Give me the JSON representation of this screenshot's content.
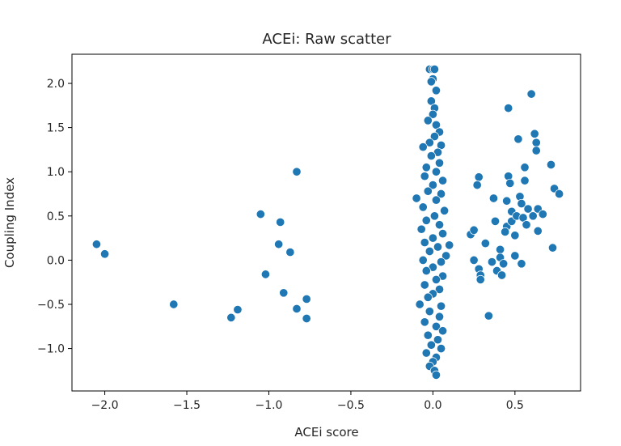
{
  "chart_data": {
    "type": "scatter",
    "title": "ACEi: Raw scatter",
    "xlabel": "ACEi score",
    "ylabel": "Coupling Index",
    "xlim": [
      -2.2,
      0.9
    ],
    "ylim": [
      -1.48,
      2.33
    ],
    "x_ticks": [
      -2.0,
      -1.5,
      -1.0,
      -0.5,
      0.0,
      0.5
    ],
    "x_tick_labels": [
      "−2.0",
      "−1.5",
      "−1.0",
      "−0.5",
      "0.0",
      "0.5"
    ],
    "y_ticks": [
      -1.0,
      -0.5,
      0.0,
      0.5,
      1.0,
      1.5,
      2.0
    ],
    "y_tick_labels": [
      "−1.0",
      "−0.5",
      "0.0",
      "0.5",
      "1.0",
      "1.5",
      "2.0"
    ],
    "grid": false,
    "marker_color": "#1f77b4",
    "points": [
      [
        -2.05,
        0.18
      ],
      [
        -2.0,
        0.07
      ],
      [
        -1.58,
        -0.5
      ],
      [
        -1.23,
        -0.65
      ],
      [
        -1.19,
        -0.56
      ],
      [
        -1.05,
        0.52
      ],
      [
        -1.02,
        -0.16
      ],
      [
        -0.93,
        0.43
      ],
      [
        -0.94,
        0.18
      ],
      [
        -0.91,
        -0.37
      ],
      [
        -0.87,
        0.09
      ],
      [
        -0.83,
        1.0
      ],
      [
        -0.83,
        -0.55
      ],
      [
        -0.77,
        -0.44
      ],
      [
        -0.77,
        -0.66
      ],
      [
        -0.02,
        2.16
      ],
      [
        0.0,
        2.16
      ],
      [
        0.01,
        2.16
      ],
      [
        0.0,
        2.05
      ],
      [
        -0.01,
        2.02
      ],
      [
        0.02,
        1.92
      ],
      [
        -0.01,
        1.8
      ],
      [
        0.01,
        1.72
      ],
      [
        0.0,
        1.65
      ],
      [
        -0.03,
        1.58
      ],
      [
        0.02,
        1.53
      ],
      [
        0.04,
        1.45
      ],
      [
        0.01,
        1.4
      ],
      [
        -0.02,
        1.33
      ],
      [
        0.05,
        1.3
      ],
      [
        -0.06,
        1.28
      ],
      [
        0.03,
        1.22
      ],
      [
        -0.01,
        1.18
      ],
      [
        0.04,
        1.1
      ],
      [
        -0.04,
        1.05
      ],
      [
        0.02,
        1.0
      ],
      [
        -0.05,
        0.95
      ],
      [
        0.06,
        0.9
      ],
      [
        0.0,
        0.85
      ],
      [
        -0.03,
        0.78
      ],
      [
        0.05,
        0.75
      ],
      [
        -0.1,
        0.7
      ],
      [
        0.02,
        0.68
      ],
      [
        -0.06,
        0.6
      ],
      [
        0.07,
        0.56
      ],
      [
        0.01,
        0.5
      ],
      [
        -0.04,
        0.45
      ],
      [
        0.04,
        0.4
      ],
      [
        -0.07,
        0.35
      ],
      [
        0.06,
        0.3
      ],
      [
        0.0,
        0.25
      ],
      [
        0.1,
        0.17
      ],
      [
        -0.05,
        0.2
      ],
      [
        0.03,
        0.15
      ],
      [
        -0.02,
        0.1
      ],
      [
        0.08,
        0.05
      ],
      [
        -0.06,
        0.0
      ],
      [
        0.05,
        -0.02
      ],
      [
        0.0,
        -0.08
      ],
      [
        -0.04,
        -0.12
      ],
      [
        0.06,
        -0.18
      ],
      [
        0.02,
        -0.22
      ],
      [
        -0.05,
        -0.28
      ],
      [
        0.04,
        -0.33
      ],
      [
        0.0,
        -0.38
      ],
      [
        -0.03,
        -0.42
      ],
      [
        -0.08,
        -0.5
      ],
      [
        0.05,
        -0.52
      ],
      [
        -0.02,
        -0.58
      ],
      [
        0.04,
        -0.64
      ],
      [
        -0.05,
        -0.7
      ],
      [
        0.02,
        -0.75
      ],
      [
        0.06,
        -0.8
      ],
      [
        -0.03,
        -0.85
      ],
      [
        0.03,
        -0.9
      ],
      [
        -0.01,
        -0.96
      ],
      [
        0.05,
        -1.0
      ],
      [
        -0.04,
        -1.05
      ],
      [
        0.02,
        -1.1
      ],
      [
        0.0,
        -1.15
      ],
      [
        -0.02,
        -1.2
      ],
      [
        0.01,
        -1.25
      ],
      [
        0.02,
        -1.3
      ],
      [
        0.28,
        0.94
      ],
      [
        0.27,
        0.85
      ],
      [
        0.23,
        0.29
      ],
      [
        0.25,
        0.34
      ],
      [
        0.25,
        0.0
      ],
      [
        0.28,
        -0.1
      ],
      [
        0.29,
        -0.17
      ],
      [
        0.29,
        -0.22
      ],
      [
        0.32,
        0.19
      ],
      [
        0.34,
        -0.63
      ],
      [
        0.37,
        0.7
      ],
      [
        0.38,
        0.44
      ],
      [
        0.36,
        -0.02
      ],
      [
        0.39,
        -0.12
      ],
      [
        0.41,
        0.12
      ],
      [
        0.41,
        0.03
      ],
      [
        0.42,
        -0.17
      ],
      [
        0.43,
        -0.04
      ],
      [
        0.45,
        0.67
      ],
      [
        0.45,
        0.38
      ],
      [
        0.44,
        0.32
      ],
      [
        0.46,
        0.95
      ],
      [
        0.46,
        1.72
      ],
      [
        0.47,
        0.87
      ],
      [
        0.48,
        0.55
      ],
      [
        0.48,
        0.44
      ],
      [
        0.5,
        0.28
      ],
      [
        0.5,
        0.05
      ],
      [
        0.51,
        0.5
      ],
      [
        0.52,
        1.37
      ],
      [
        0.53,
        0.72
      ],
      [
        0.54,
        0.64
      ],
      [
        0.54,
        -0.04
      ],
      [
        0.55,
        0.48
      ],
      [
        0.56,
        1.05
      ],
      [
        0.56,
        0.9
      ],
      [
        0.57,
        0.4
      ],
      [
        0.58,
        0.58
      ],
      [
        0.6,
        1.88
      ],
      [
        0.61,
        0.5
      ],
      [
        0.62,
        1.43
      ],
      [
        0.63,
        1.33
      ],
      [
        0.63,
        1.24
      ],
      [
        0.64,
        0.58
      ],
      [
        0.64,
        0.33
      ],
      [
        0.67,
        0.52
      ],
      [
        0.72,
        1.08
      ],
      [
        0.73,
        0.14
      ],
      [
        0.74,
        0.81
      ],
      [
        0.77,
        0.75
      ]
    ]
  }
}
